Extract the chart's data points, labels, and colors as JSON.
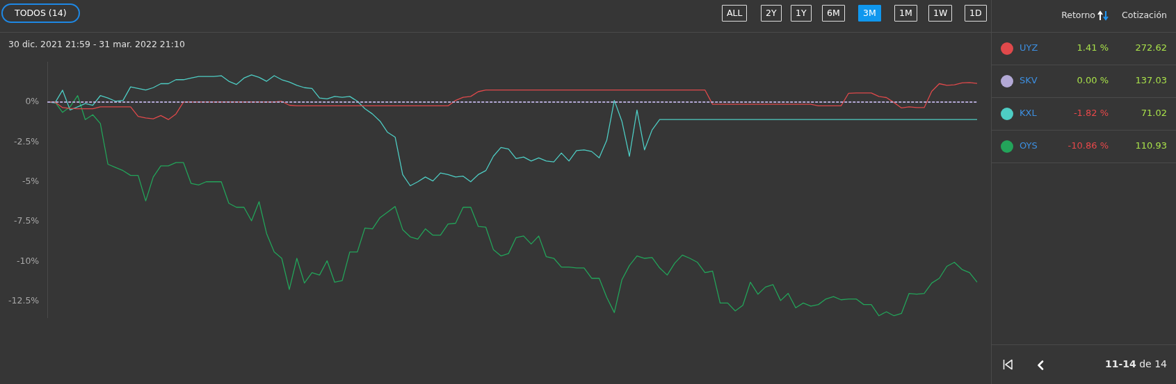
{
  "chart_data": {
    "type": "line",
    "subtitle": "30 dic. 2021 21:59 - 31 mar. 2022 21:10",
    "categories": [
      null,
      null,
      null,
      null,
      null,
      null,
      null,
      null,
      null,
      null,
      null,
      null,
      null,
      null,
      null,
      null,
      null,
      null,
      null,
      null,
      null,
      null,
      null,
      null,
      null,
      null,
      null,
      null,
      null,
      null,
      null,
      null,
      null,
      null,
      null,
      null,
      null,
      null,
      null,
      null,
      null,
      null,
      null,
      null,
      null,
      null,
      null,
      null,
      null,
      null,
      null,
      null,
      null,
      null,
      null,
      null,
      null,
      null,
      null,
      null,
      null,
      null,
      null,
      null,
      null,
      null,
      null,
      null,
      null,
      null,
      null,
      null,
      null,
      null,
      null,
      null,
      null,
      null,
      null,
      null,
      null,
      null,
      null,
      null,
      null,
      null,
      null,
      null,
      null,
      null,
      null,
      null,
      null,
      null,
      null,
      null,
      null,
      null,
      null,
      null,
      null,
      null,
      null,
      null,
      null,
      null,
      null,
      null,
      null,
      null,
      null,
      null,
      null,
      null,
      null,
      null,
      null,
      null,
      null,
      null,
      null,
      null,
      null,
      null
    ],
    "series": [
      {
        "name": "UYZ",
        "color": "#e0494b",
        "values": [
          0,
          0,
          -0.35,
          -0.4,
          -0.42,
          -0.42,
          -0.42,
          -0.3,
          -0.3,
          -0.3,
          -0.3,
          -0.3,
          -0.9,
          -1.0,
          -1.05,
          -0.85,
          -1.1,
          -0.75,
          0,
          0,
          0,
          0,
          0,
          0,
          0,
          0,
          0,
          0,
          0,
          0,
          0,
          0.04,
          -0.2,
          -0.24,
          -0.24,
          -0.24,
          -0.24,
          -0.24,
          -0.24,
          -0.24,
          -0.24,
          -0.24,
          -0.24,
          -0.24,
          -0.24,
          -0.24,
          -0.24,
          -0.24,
          -0.24,
          -0.24,
          -0.24,
          -0.24,
          -0.24,
          -0.24,
          0.1,
          0.3,
          0.35,
          0.65,
          0.75,
          0.75,
          0.75,
          0.75,
          0.75,
          0.75,
          0.75,
          0.75,
          0.75,
          0.75,
          0.75,
          0.75,
          0.75,
          0.75,
          0.75,
          0.75,
          0.75,
          0.75,
          0.75,
          0.75,
          0.75,
          0.75,
          0.75,
          0.75,
          0.75,
          0.75,
          0.75,
          0.75,
          0.75,
          0.75,
          -0.14,
          -0.14,
          -0.14,
          -0.14,
          -0.14,
          -0.14,
          -0.14,
          -0.14,
          -0.14,
          -0.14,
          -0.14,
          -0.14,
          -0.14,
          -0.14,
          -0.24,
          -0.24,
          -0.24,
          -0.24,
          0.55,
          0.57,
          0.57,
          0.57,
          0.35,
          0.28,
          -0.03,
          -0.37,
          -0.3,
          -0.35,
          -0.35,
          0.67,
          1.15,
          1.05,
          1.08,
          1.2,
          1.22,
          1.17
        ]
      },
      {
        "name": "SKV",
        "color": "#b3a9d6",
        "line_style": "dashed",
        "values": [
          0,
          0,
          0,
          0,
          0,
          0,
          0,
          0,
          0,
          0,
          0,
          0,
          0,
          0,
          0,
          0,
          0,
          0,
          0,
          0,
          0,
          0,
          0,
          0,
          0,
          0,
          0,
          0,
          0,
          0,
          0,
          0,
          0,
          0,
          0,
          0,
          0,
          0,
          0,
          0,
          0,
          0,
          0,
          0,
          0,
          0,
          0,
          0,
          0,
          0,
          0,
          0,
          0,
          0,
          0,
          0,
          0,
          0,
          0,
          0,
          0,
          0,
          0,
          0,
          0,
          0,
          0,
          0,
          0,
          0,
          0,
          0,
          0,
          0,
          0,
          0,
          0,
          0,
          0,
          0,
          0,
          0,
          0,
          0,
          0,
          0,
          0,
          0,
          0,
          0,
          0,
          0,
          0,
          0,
          0,
          0,
          0,
          0,
          0,
          0,
          0,
          0,
          0,
          0,
          0,
          0,
          0,
          0,
          0,
          0,
          0,
          0,
          0,
          0,
          0,
          0,
          0,
          0,
          0,
          0,
          0,
          0,
          0,
          0
        ]
      },
      {
        "name": "KXL",
        "color": "#4ecdc4",
        "values": [
          0,
          -0.05,
          0.74,
          -0.5,
          -0.3,
          -0.1,
          -0.2,
          0.4,
          0.25,
          0.05,
          0.1,
          0.95,
          0.85,
          0.75,
          0.9,
          1.15,
          1.15,
          1.4,
          1.4,
          1.5,
          1.6,
          1.6,
          1.6,
          1.65,
          1.3,
          1.1,
          1.5,
          1.7,
          1.55,
          1.3,
          1.65,
          1.4,
          1.25,
          1.05,
          0.9,
          0.85,
          0.25,
          0.2,
          0.35,
          0.3,
          0.35,
          0.05,
          -0.42,
          -0.75,
          -1.2,
          -1.9,
          -2.2,
          -4.55,
          -5.25,
          -5.0,
          -4.7,
          -4.95,
          -4.45,
          -4.55,
          -4.7,
          -4.65,
          -5.0,
          -4.55,
          -4.3,
          -3.4,
          -2.85,
          -2.95,
          -3.55,
          -3.45,
          -3.7,
          -3.5,
          -3.7,
          -3.75,
          -3.2,
          -3.7,
          -3.05,
          -3.0,
          -3.1,
          -3.5,
          -2.4,
          0.1,
          -1.2,
          -3.4,
          -0.5,
          -3.0,
          -1.75,
          -1.1,
          -1.1,
          -1.1,
          -1.1,
          -1.1,
          -1.1,
          -1.1,
          -1.1,
          -1.1,
          -1.1,
          -1.1,
          -1.1,
          -1.1,
          -1.1,
          -1.1,
          -1.1,
          -1.1,
          -1.1,
          -1.1,
          -1.1,
          -1.1,
          -1.1,
          -1.1,
          -1.1,
          -1.1,
          -1.1,
          -1.1,
          -1.1,
          -1.1,
          -1.1,
          -1.1,
          -1.1,
          -1.1,
          -1.1,
          -1.1,
          -1.1,
          -1.1,
          -1.1,
          -1.1,
          -1.1,
          -1.1,
          -1.1,
          -1.1
        ]
      },
      {
        "name": "OYS",
        "color": "#23a45a",
        "values": [
          0,
          0,
          -0.65,
          -0.3,
          0.4,
          -1.1,
          -0.8,
          -1.35,
          -3.9,
          -4.1,
          -4.3,
          -4.6,
          -4.6,
          -6.2,
          -4.7,
          -4.0,
          -4.0,
          -3.8,
          -3.8,
          -5.1,
          -5.2,
          -5.0,
          -5.0,
          -5.0,
          -6.35,
          -6.6,
          -6.6,
          -7.45,
          -6.25,
          -8.25,
          -9.4,
          -9.8,
          -11.75,
          -9.8,
          -11.35,
          -10.7,
          -10.85,
          -9.95,
          -11.3,
          -11.2,
          -9.4,
          -9.4,
          -7.9,
          -7.95,
          -7.25,
          -6.9,
          -6.55,
          -8.0,
          -8.45,
          -8.6,
          -7.95,
          -8.35,
          -8.35,
          -7.65,
          -7.6,
          -6.6,
          -6.6,
          -7.8,
          -7.85,
          -9.25,
          -9.65,
          -9.5,
          -8.5,
          -8.4,
          -8.9,
          -8.4,
          -9.7,
          -9.8,
          -10.35,
          -10.35,
          -10.4,
          -10.4,
          -11.05,
          -11.05,
          -12.25,
          -13.2,
          -11.15,
          -10.25,
          -9.65,
          -9.8,
          -9.75,
          -10.4,
          -10.85,
          -10.1,
          -9.6,
          -9.8,
          -10.05,
          -10.7,
          -10.6,
          -12.6,
          -12.6,
          -13.1,
          -12.75,
          -11.3,
          -12.05,
          -11.6,
          -11.45,
          -12.45,
          -12.0,
          -12.9,
          -12.6,
          -12.8,
          -12.7,
          -12.35,
          -12.2,
          -12.4,
          -12.35,
          -12.35,
          -12.7,
          -12.7,
          -13.4,
          -13.15,
          -13.4,
          -13.25,
          -12.0,
          -12.05,
          -12.0,
          -11.35,
          -11.05,
          -10.3,
          -10.05,
          -10.5,
          -10.7,
          -11.3
        ]
      }
    ],
    "ylim": [
      -13.5,
      2.5
    ],
    "yticks": [
      {
        "value": 0,
        "label": "0%"
      },
      {
        "value": -2.5,
        "label": "-2.5%"
      },
      {
        "value": -5,
        "label": "-5%"
      },
      {
        "value": -7.5,
        "label": "-7.5%"
      },
      {
        "value": -10,
        "label": "-10%"
      },
      {
        "value": -12.5,
        "label": "-12.5%"
      }
    ],
    "tick_labels": "y",
    "legend": "right",
    "annotations": [
      "TODOS (14)",
      "ALL",
      "2Y",
      "1Y",
      "6M",
      "3M",
      "1M",
      "1W",
      "1D",
      "Retorno",
      "Cotización",
      "1.41 %",
      "0.00 %",
      "-1.82 %",
      "-10.86 %",
      "272.62",
      "137.03",
      "71.02",
      "110.93",
      "11-14 de 14"
    ]
  }
}
